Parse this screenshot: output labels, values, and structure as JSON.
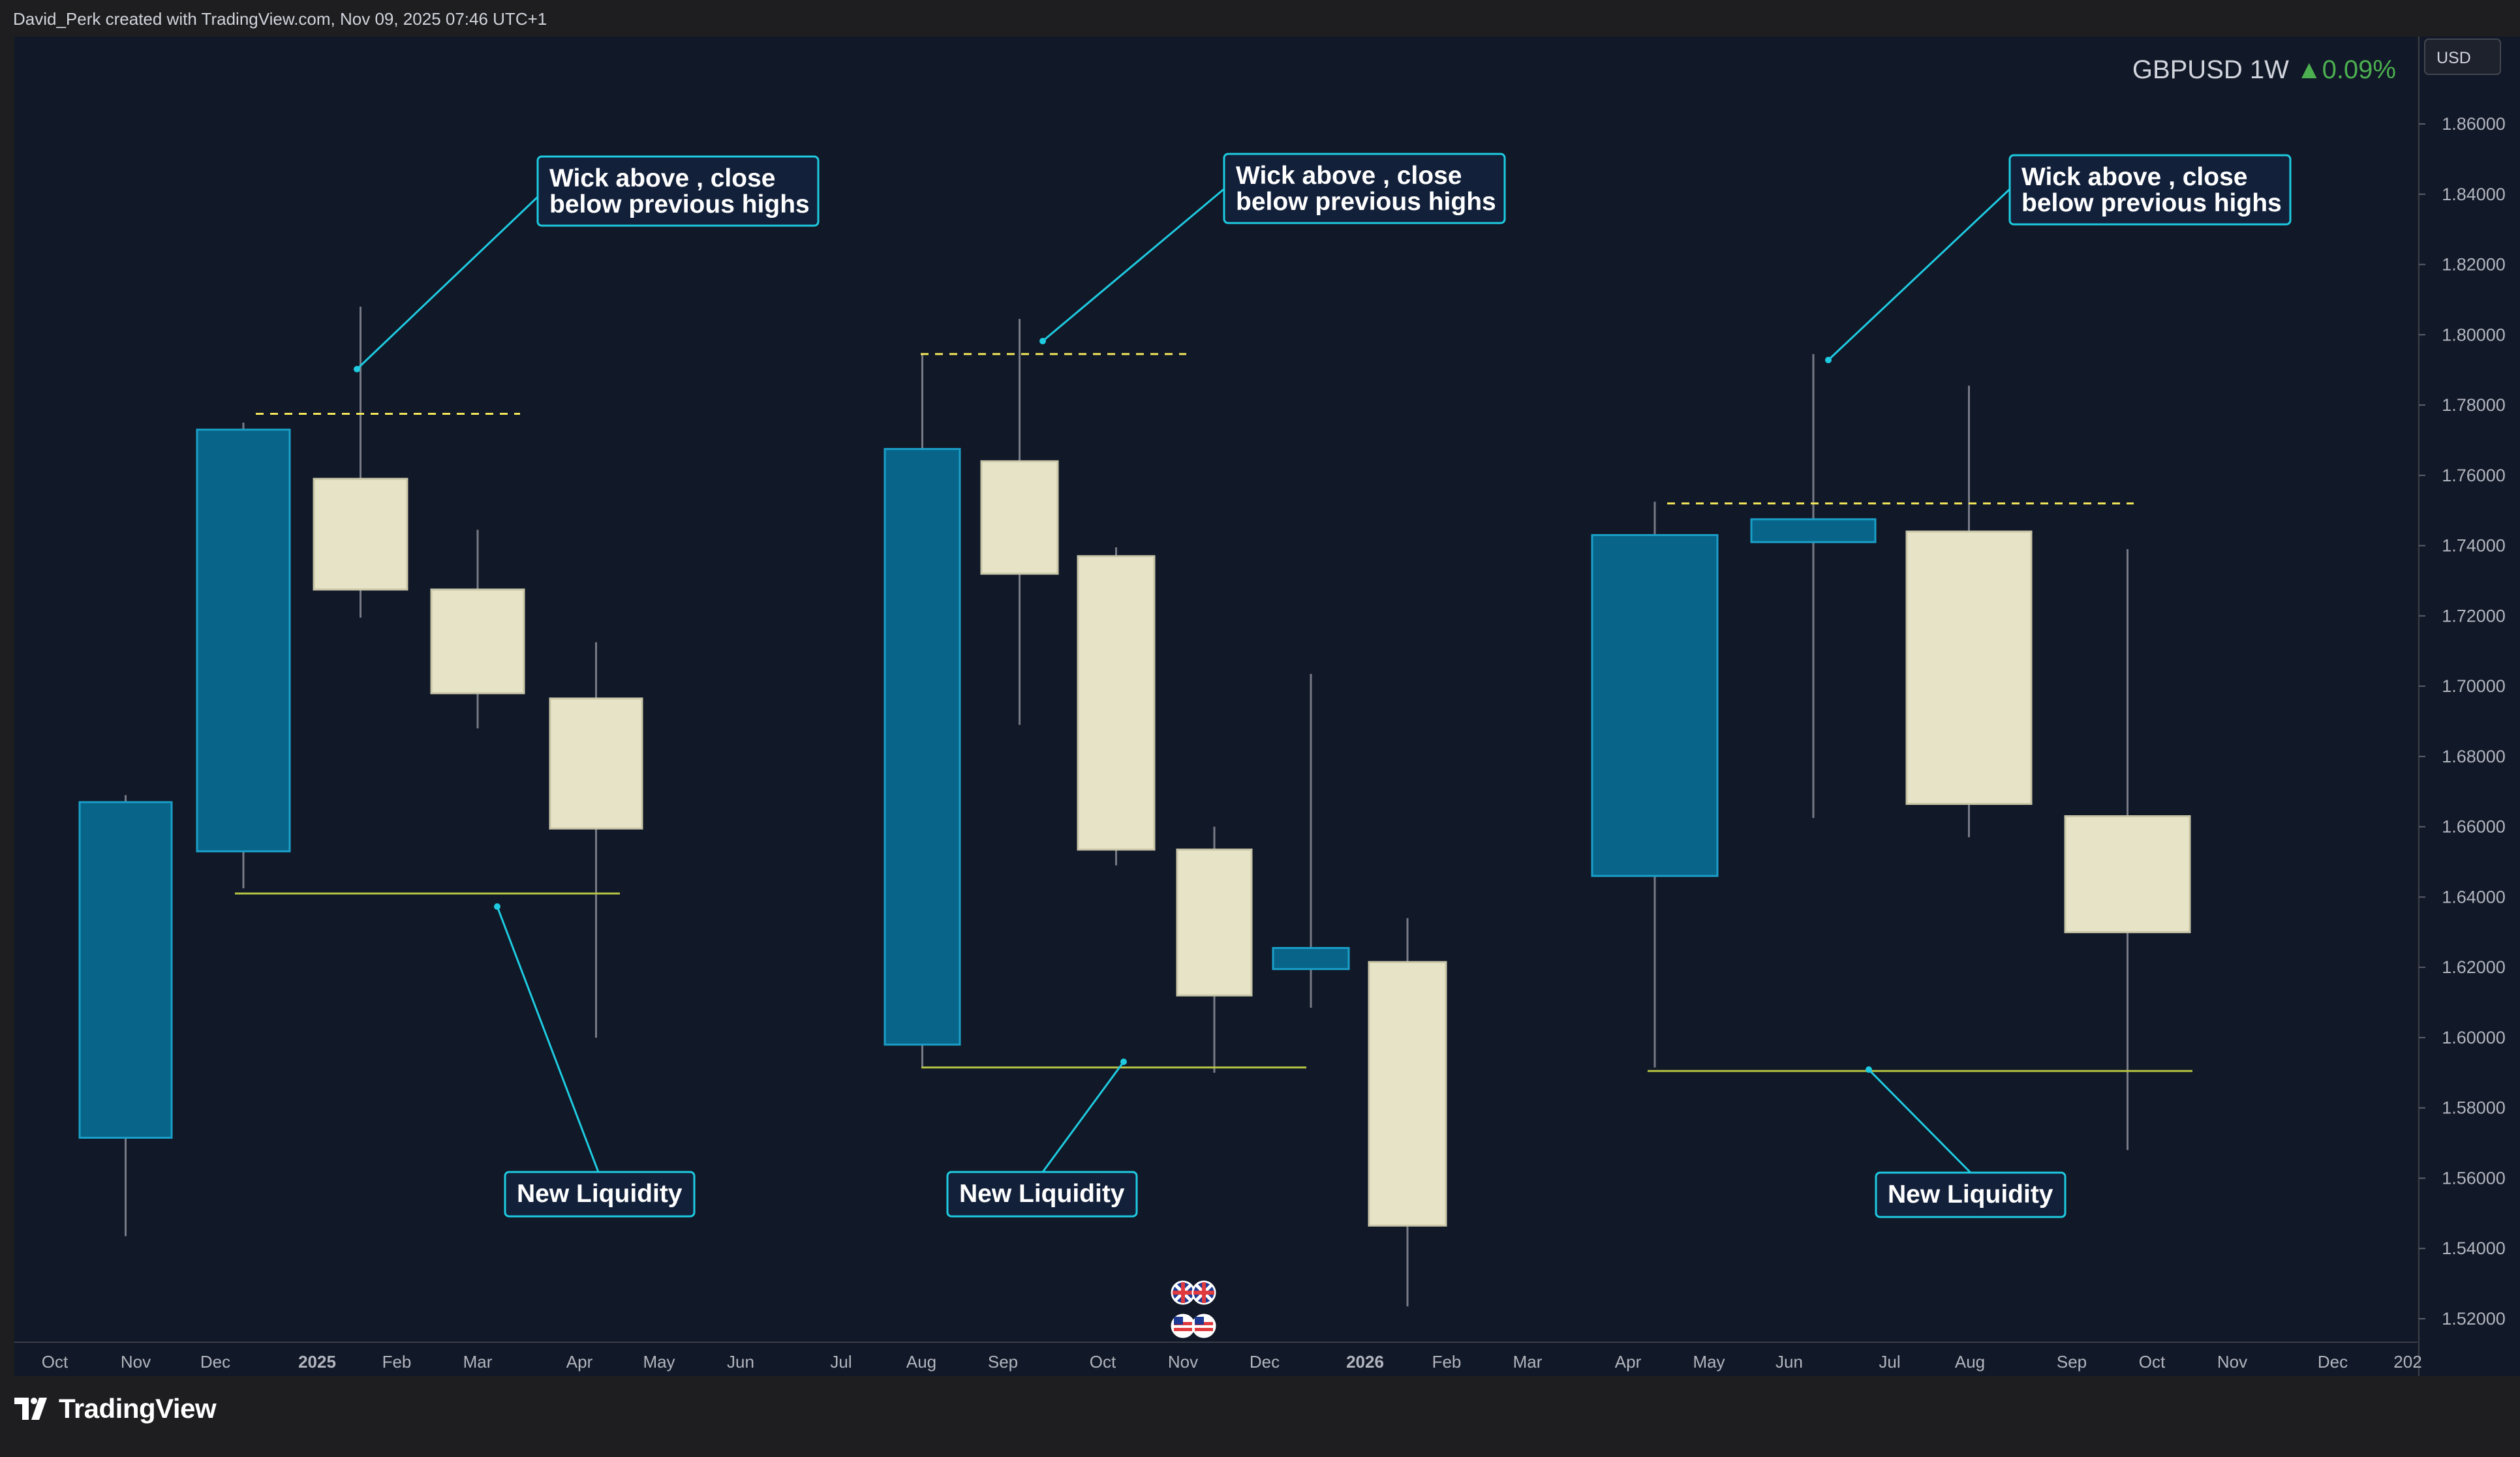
{
  "attribution": "David_Perk created with TradingView.com, Nov 09, 2025 07:46 UTC+1",
  "currency_button": "USD",
  "brand": "TradingView",
  "colors": {
    "background": "#111827",
    "bull_fill": "#086489",
    "bull_border": "#1a9fc8",
    "bear_fill": "#e6e3c6",
    "wick": "#787b86",
    "annotation": "#1ecbe1",
    "liquidity_line": "#b6c443",
    "high_dash": "#f2e65a",
    "change_up": "#4caf50"
  },
  "chart_data": {
    "type": "candlestick",
    "symbol": "GBPUSD",
    "timeframe": "1W",
    "change_pct": "0.09%",
    "y_ticks": [
      "1.86000",
      "1.84000",
      "1.82000",
      "1.80000",
      "1.78000",
      "1.76000",
      "1.74000",
      "1.72000",
      "1.70000",
      "1.68000",
      "1.66000",
      "1.64000",
      "1.62000",
      "1.60000",
      "1.58000",
      "1.56000",
      "1.54000",
      "1.52000"
    ],
    "ylim": [
      1.514,
      1.887
    ],
    "x_ticks": [
      "Oct",
      "Nov",
      "Dec",
      "2025",
      "Feb",
      "Mar",
      "Apr",
      "May",
      "Jun",
      "Jul",
      "Aug",
      "Sep",
      "Oct",
      "Nov",
      "Dec",
      "2026",
      "Feb",
      "Mar",
      "Apr",
      "May",
      "Jun",
      "Jul",
      "Aug",
      "Sep",
      "Oct",
      "Nov",
      "Dec",
      "202"
    ],
    "bold_x_ticks": [
      "2025",
      "2026"
    ],
    "candles": [
      {
        "group": 1,
        "label": "Nov",
        "open": 1.5715,
        "high": 1.669,
        "low": 1.5435,
        "close": 1.667,
        "direction": "bull"
      },
      {
        "group": 1,
        "label": "Dec",
        "open": 1.653,
        "high": 1.775,
        "low": 1.6425,
        "close": 1.773,
        "direction": "bull"
      },
      {
        "group": 1,
        "label": "Feb",
        "open": 1.759,
        "high": 1.808,
        "low": 1.7195,
        "close": 1.7275,
        "direction": "bear"
      },
      {
        "group": 1,
        "label": "Mar",
        "open": 1.7275,
        "high": 1.7445,
        "low": 1.688,
        "close": 1.698,
        "direction": "bear"
      },
      {
        "group": 1,
        "label": "Apr",
        "open": 1.6965,
        "high": 1.7125,
        "low": 1.6,
        "close": 1.6595,
        "direction": "bear"
      },
      {
        "group": 2,
        "label": "Aug",
        "open": 1.598,
        "high": 1.7945,
        "low": 1.5915,
        "close": 1.7675,
        "direction": "bull"
      },
      {
        "group": 2,
        "label": "Sep",
        "open": 1.764,
        "high": 1.8045,
        "low": 1.689,
        "close": 1.732,
        "direction": "bear"
      },
      {
        "group": 2,
        "label": "Oct",
        "open": 1.737,
        "high": 1.7395,
        "low": 1.649,
        "close": 1.6535,
        "direction": "bear"
      },
      {
        "group": 2,
        "label": "Nov",
        "open": 1.6535,
        "high": 1.66,
        "low": 1.59,
        "close": 1.612,
        "direction": "bear"
      },
      {
        "group": 2,
        "label": "Dec",
        "open": 1.6195,
        "high": 1.7035,
        "low": 1.6085,
        "close": 1.6255,
        "direction": "bull"
      },
      {
        "group": 2,
        "label": "2026",
        "open": 1.6215,
        "high": 1.634,
        "low": 1.5235,
        "close": 1.5465,
        "direction": "bear"
      },
      {
        "group": 3,
        "label": "Apr",
        "open": 1.646,
        "high": 1.7525,
        "low": 1.5915,
        "close": 1.743,
        "direction": "bull"
      },
      {
        "group": 3,
        "label": "Jun",
        "open": 1.741,
        "high": 1.7945,
        "low": 1.6625,
        "close": 1.7475,
        "direction": "bull"
      },
      {
        "group": 3,
        "label": "Aug",
        "open": 1.744,
        "high": 1.7855,
        "low": 1.657,
        "close": 1.6665,
        "direction": "bear"
      },
      {
        "group": 3,
        "label": "Oct",
        "open": 1.663,
        "high": 1.739,
        "low": 1.568,
        "close": 1.63,
        "direction": "bear"
      }
    ],
    "previous_high_levels": [
      {
        "group": 1,
        "value": 1.7775
      },
      {
        "group": 2,
        "value": 1.7945
      },
      {
        "group": 3,
        "value": 1.752
      }
    ],
    "liquidity_levels": [
      {
        "group": 1,
        "value": 1.641
      },
      {
        "group": 2,
        "value": 1.5915
      },
      {
        "group": 3,
        "value": 1.5905
      }
    ],
    "annotations": {
      "wick_label_line1": "Wick above , close",
      "wick_label_line2": "below previous highs",
      "liquidity_label": "New Liquidity"
    }
  }
}
